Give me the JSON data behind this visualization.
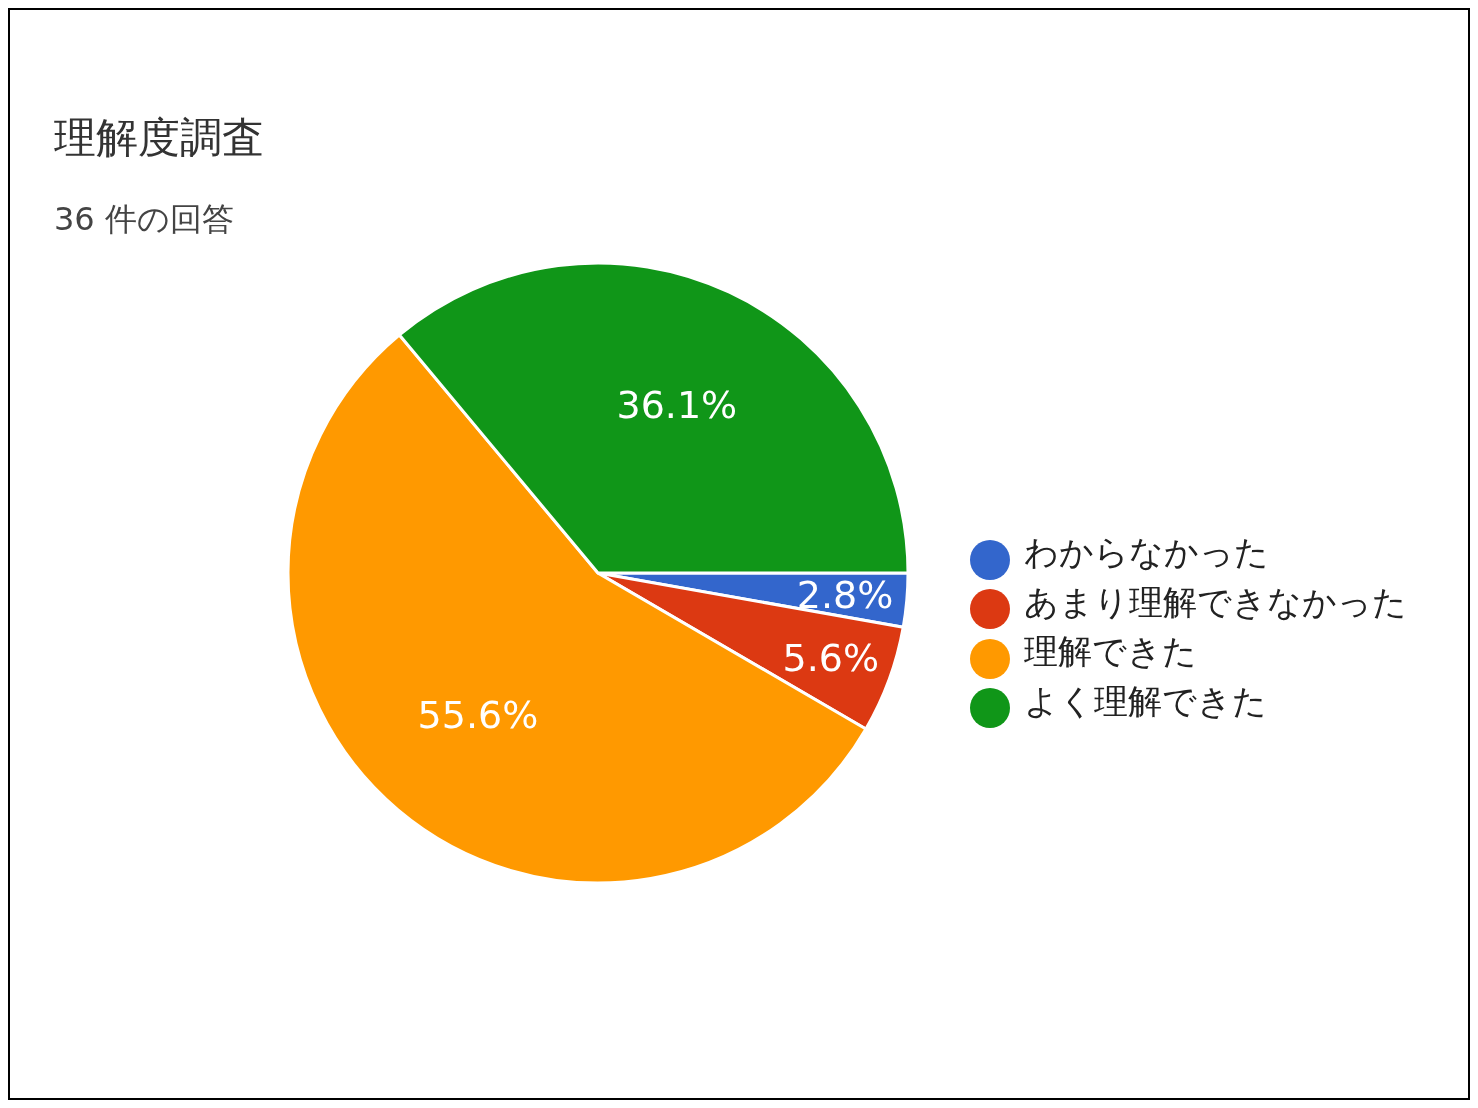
{
  "chart_data": {
    "type": "pie",
    "title": "理解度調査",
    "subtitle": "36 件の回答",
    "categories": [
      "わからなかった",
      "あまり理解できなかった",
      "理解できた",
      "よく理解できた"
    ],
    "values": [
      2.8,
      5.6,
      55.6,
      36.1
    ],
    "colors": [
      "#3366cc",
      "#dc3912",
      "#ff9900",
      "#109618"
    ],
    "value_labels": [
      "2.8%",
      "5.6%",
      "55.6%",
      "36.1%"
    ],
    "legend": "right"
  }
}
